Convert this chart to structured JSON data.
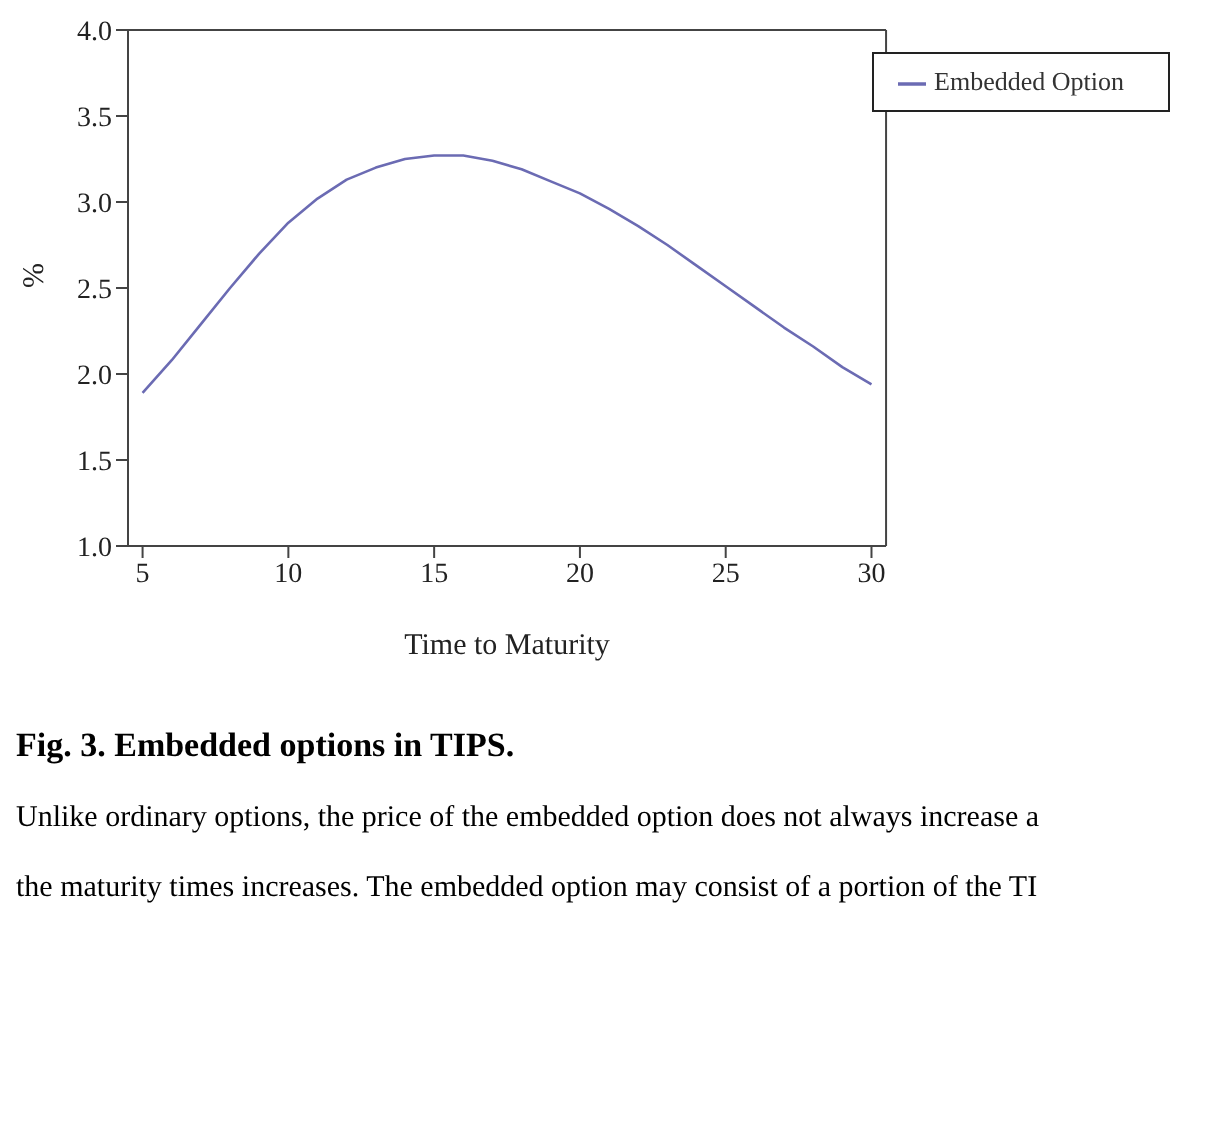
{
  "chart_data": {
    "type": "line",
    "xlabel": "Time to Maturity",
    "ylabel": "%",
    "x": [
      5,
      6,
      7,
      8,
      9,
      10,
      11,
      12,
      13,
      14,
      15,
      16,
      17,
      18,
      19,
      20,
      21,
      22,
      23,
      24,
      25,
      26,
      27,
      28,
      29,
      30
    ],
    "series": [
      {
        "name": "Embedded Option",
        "color": "#6b6bb3",
        "values": [
          1.89,
          2.08,
          2.29,
          2.5,
          2.7,
          2.88,
          3.02,
          3.13,
          3.2,
          3.25,
          3.27,
          3.27,
          3.24,
          3.19,
          3.12,
          3.05,
          2.96,
          2.86,
          2.75,
          2.63,
          2.51,
          2.39,
          2.27,
          2.16,
          2.04,
          1.94
        ]
      }
    ],
    "xlim": [
      4.5,
      30.5
    ],
    "xticks": [
      5,
      10,
      15,
      20,
      25,
      30
    ],
    "ylim": [
      1.0,
      4.0
    ],
    "yticks": [
      {
        "value": 1.0,
        "label": "1.0"
      },
      {
        "value": 1.5,
        "label": "1.5"
      },
      {
        "value": 2.0,
        "label": "2.0"
      },
      {
        "value": 2.5,
        "label": "2.5"
      },
      {
        "value": 3.0,
        "label": "3.0"
      },
      {
        "value": 3.5,
        "label": "3.5"
      },
      {
        "value": 4.0,
        "label": "4.0"
      }
    ],
    "grid": false,
    "legend": "top right",
    "marker": "none",
    "line_style": "solid",
    "annotations": [
      "Fig. 3. Embedded options in TIPS.",
      "Unlike ordinary options, the price of the embedded option does not always increase a",
      "the maturity times increases. The embedded option may consist of a portion of the TI"
    ]
  }
}
